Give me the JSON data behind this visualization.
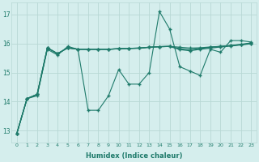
{
  "xlabel": "Humidex (Indice chaleur)",
  "bg_color": "#d5eeed",
  "line_color": "#1e7a6a",
  "grid_color": "#b8d8d5",
  "xlim": [
    -0.5,
    23.5
  ],
  "ylim": [
    12.6,
    17.4
  ],
  "yticks": [
    13,
    14,
    15,
    16,
    17
  ],
  "xticks": [
    0,
    1,
    2,
    3,
    4,
    5,
    6,
    7,
    8,
    9,
    10,
    11,
    12,
    13,
    14,
    15,
    16,
    17,
    18,
    19,
    20,
    21,
    22,
    23
  ],
  "s1": [
    12.9,
    14.1,
    14.2,
    15.8,
    15.6,
    15.9,
    15.8,
    13.7,
    13.7,
    14.2,
    15.1,
    14.6,
    14.6,
    15.0,
    17.1,
    16.5,
    15.2,
    15.05,
    14.9,
    15.8,
    15.7,
    16.1,
    16.1,
    16.05
  ],
  "s2": [
    12.9,
    14.1,
    14.25,
    15.85,
    15.65,
    15.85,
    15.8,
    15.8,
    15.8,
    15.8,
    15.82,
    15.83,
    15.84,
    15.87,
    15.89,
    15.9,
    15.87,
    15.84,
    15.85,
    15.88,
    15.9,
    15.93,
    15.97,
    16.02
  ],
  "s3": [
    12.9,
    14.1,
    14.25,
    15.85,
    15.65,
    15.85,
    15.8,
    15.8,
    15.8,
    15.8,
    15.82,
    15.83,
    15.84,
    15.87,
    15.89,
    15.9,
    15.82,
    15.78,
    15.83,
    15.87,
    15.9,
    15.93,
    15.96,
    16.0
  ],
  "s4": [
    12.9,
    14.1,
    14.25,
    15.85,
    15.65,
    15.85,
    15.8,
    15.8,
    15.8,
    15.8,
    15.82,
    15.83,
    15.84,
    15.87,
    15.89,
    15.9,
    15.79,
    15.75,
    15.8,
    15.84,
    15.88,
    15.91,
    15.95,
    15.99
  ]
}
